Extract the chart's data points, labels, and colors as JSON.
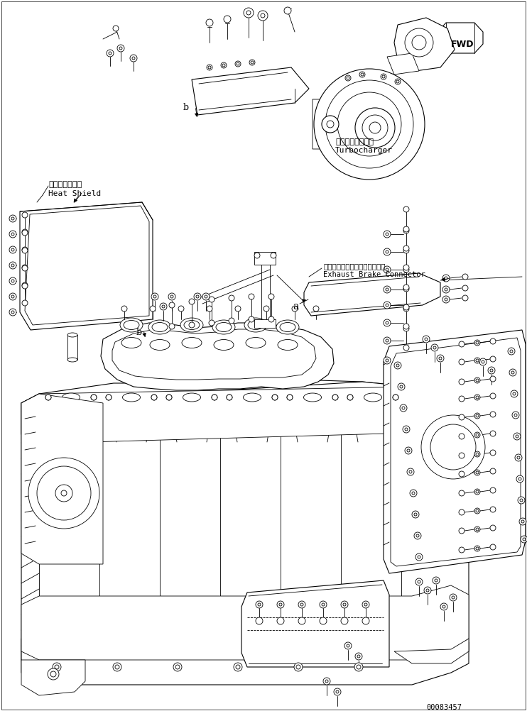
{
  "bg_color": "#ffffff",
  "line_color": "#000000",
  "fig_width": 7.42,
  "fig_height": 10.02,
  "dpi": 100,
  "part_number": "00083457",
  "fwd_label": "FWD",
  "label_turbocharger_jp": "ターボチャージャ",
  "label_turbocharger_en": "Turbocharger",
  "label_heatshield_jp": "ヒートシールド",
  "label_heatshield_en": "Heat Shield",
  "label_exhaust_jp": "エキゾーストブレーキコネクタ",
  "label_exhaust_en": "Exhaust Brake Connector",
  "label_a": "a",
  "label_b1": "b",
  "label_b2": "b"
}
